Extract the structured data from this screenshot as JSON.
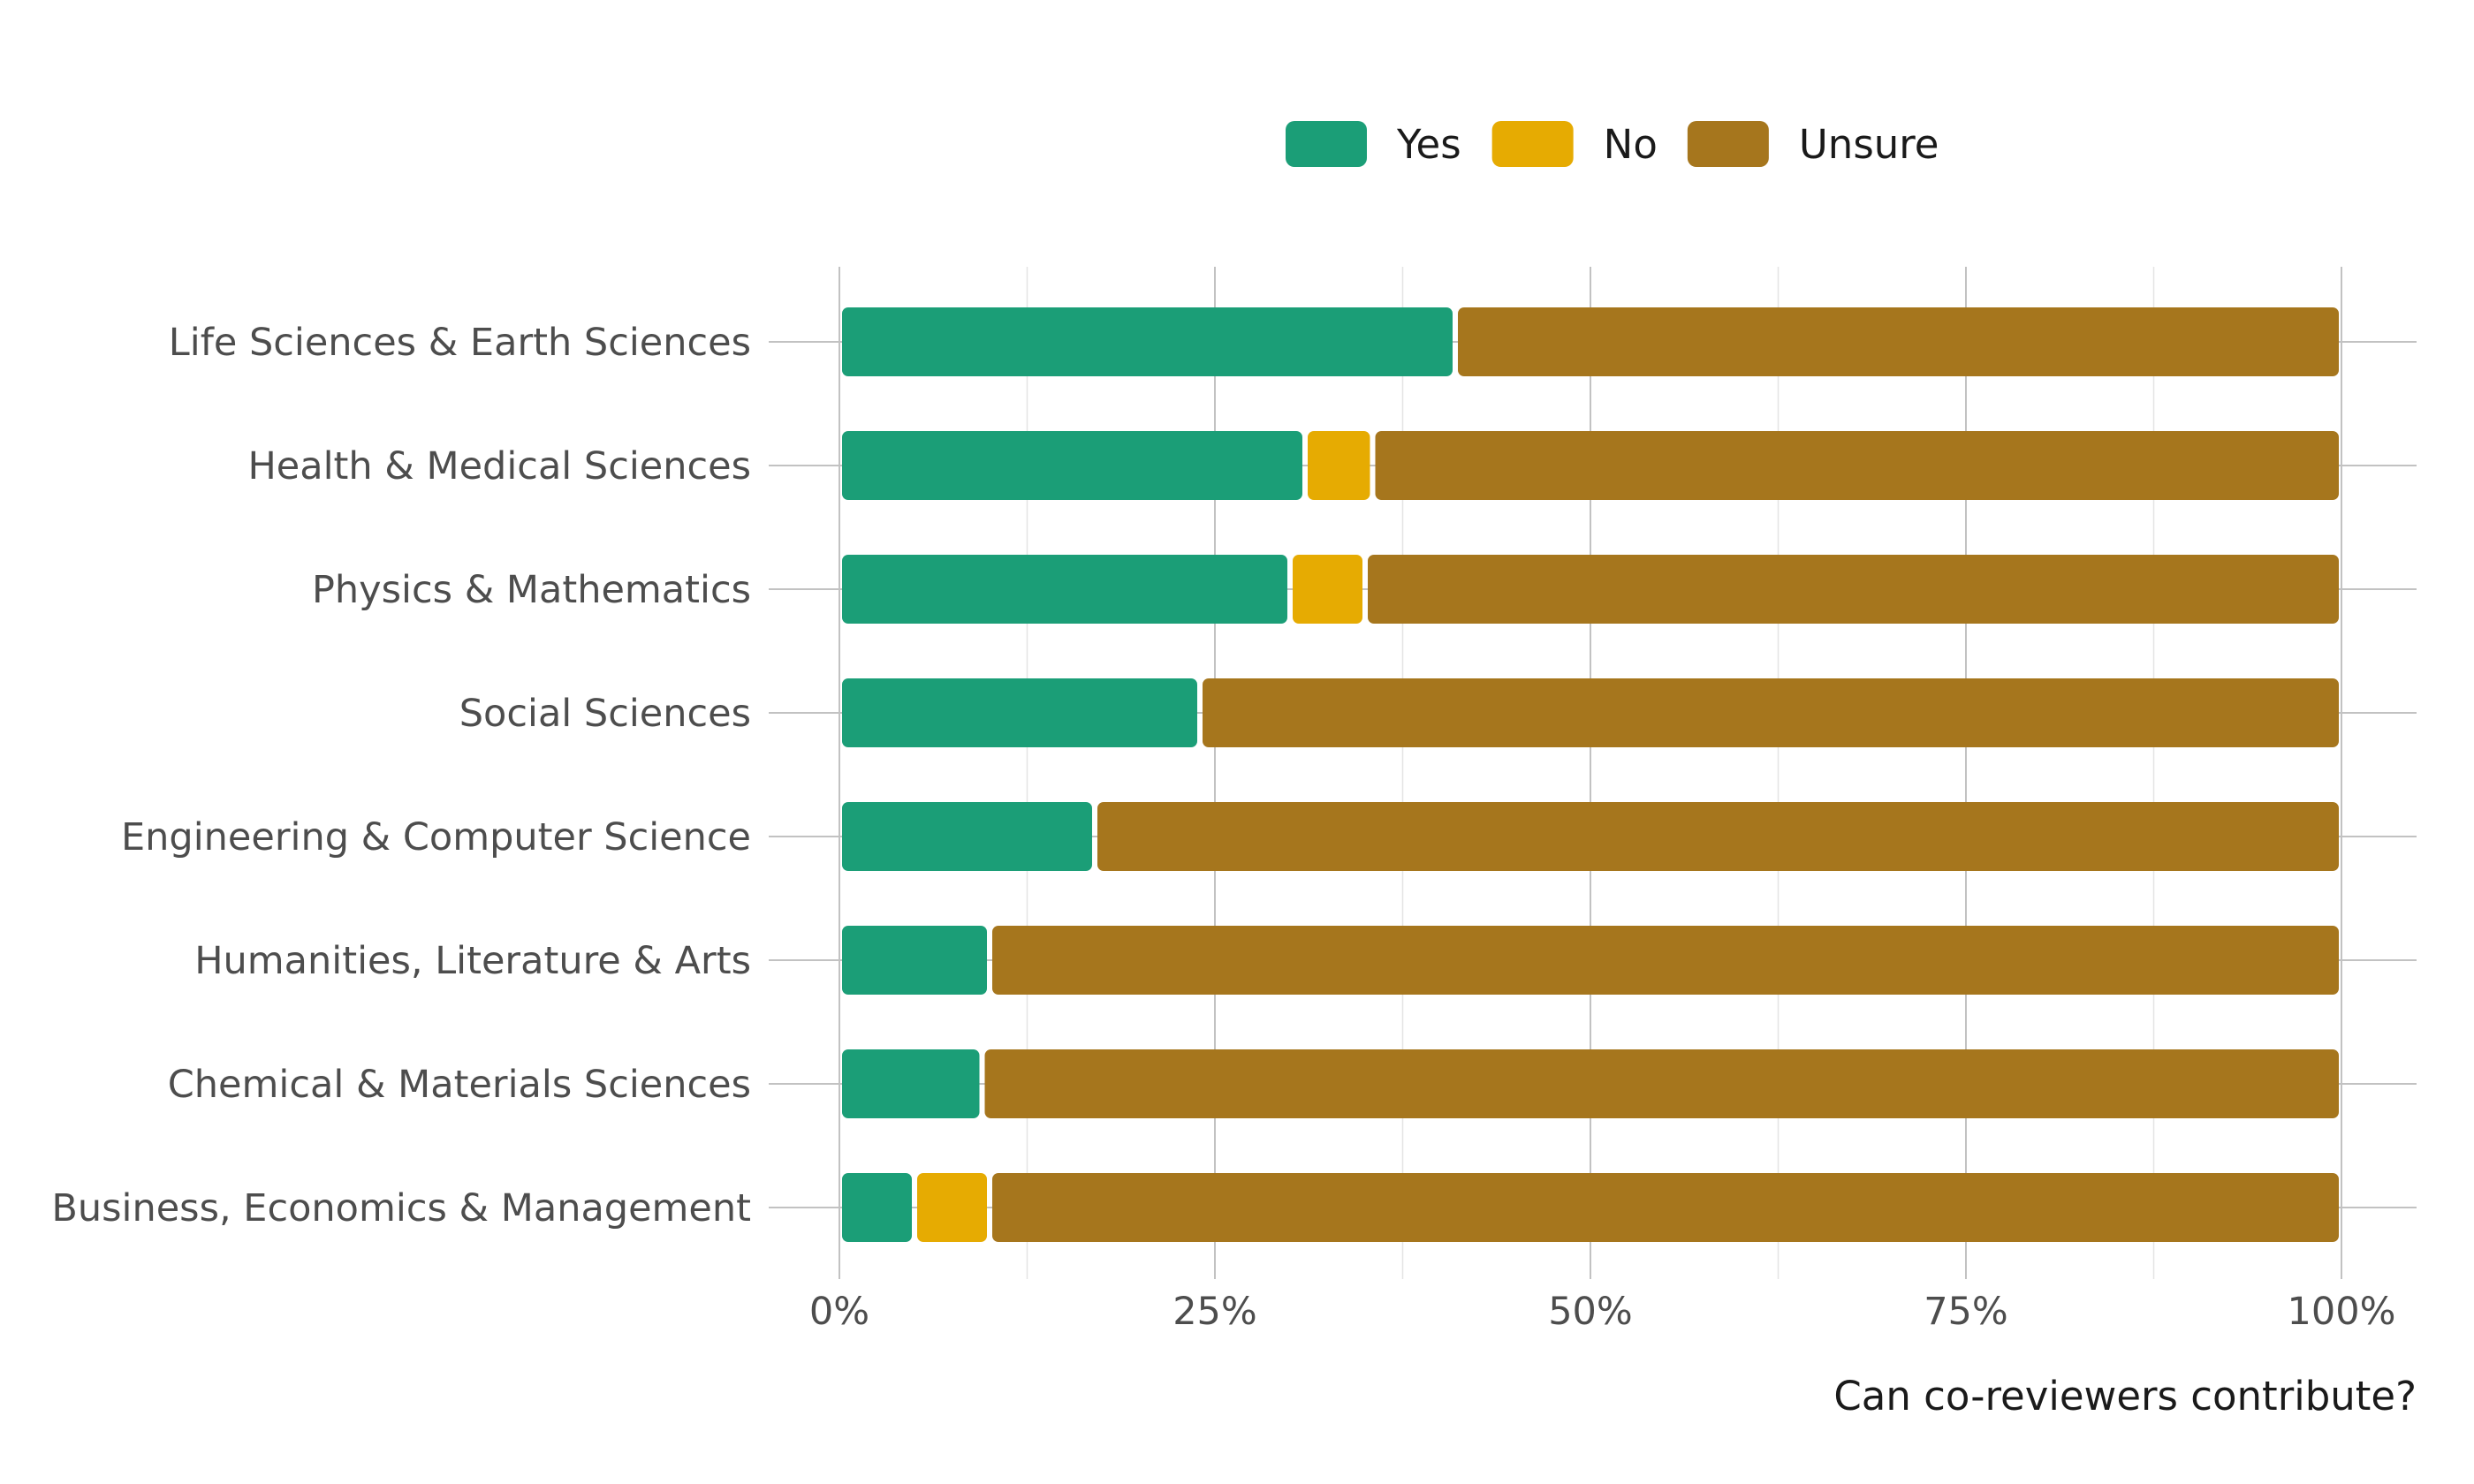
{
  "chart_data": {
    "type": "bar",
    "orientation": "horizontal",
    "stacked": true,
    "percent": true,
    "categories": [
      "Life Sciences & Earth Sciences",
      "Health & Medical Sciences",
      "Physics & Mathematics",
      "Social Sciences",
      "Engineering & Computer Science",
      "Humanities, Literature & Arts",
      "Chemical & Materials Sciences",
      "Business, Economics & Management"
    ],
    "series": [
      {
        "name": "Yes",
        "color": "#1b9e77",
        "values": [
          41,
          31,
          30,
          24,
          17,
          10,
          9.5,
          5
        ]
      },
      {
        "name": "No",
        "color": "#e6ab02",
        "values": [
          0,
          4.5,
          5,
          0,
          0,
          0,
          0,
          5
        ]
      },
      {
        "name": "Unsure",
        "color": "#a6761d",
        "values": [
          59,
          64.5,
          65,
          76,
          83,
          90,
          90.5,
          90
        ]
      }
    ],
    "xlabel": "Can co-reviewers contribute?",
    "ylabel": "",
    "xlim": [
      0,
      100
    ],
    "xticks": [
      "0%",
      "25%",
      "50%",
      "75%",
      "100%"
    ],
    "legend_position": "top",
    "grid": true
  }
}
